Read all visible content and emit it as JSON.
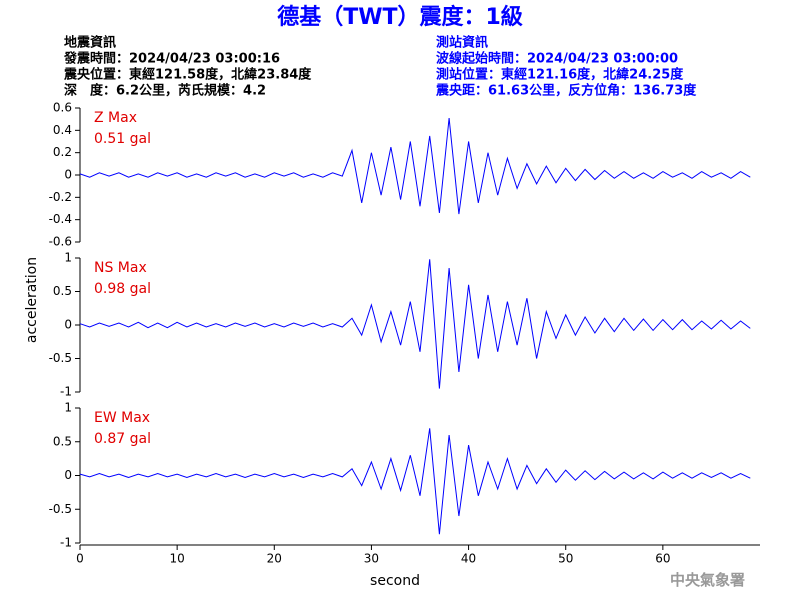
{
  "title": "德基（TWT）震度：1級",
  "event_info": {
    "heading": "地震資訊",
    "lines": [
      "發震時間：2024/04/23 03:00:16",
      "震央位置：東經121.58度，北緯23.84度",
      "深　度：6.2公里，芮氏規模：4.2"
    ]
  },
  "station_info": {
    "heading": "測站資訊",
    "lines": [
      "波線起始時間：2024/04/23 03:00:00",
      "測站位置：東經121.16度，北緯24.25度",
      "震央距：61.63公里，反方位角：136.73度"
    ]
  },
  "footer": "中央氣象署",
  "chart_data": [
    {
      "type": "line",
      "label": "Z Max",
      "value_label": "0.51 gal",
      "xlim": [
        0,
        70
      ],
      "ylim": [
        -0.6,
        0.6
      ],
      "yticks": [
        0.6,
        0.4,
        0.2,
        0,
        -0.2,
        -0.4,
        -0.6
      ],
      "x": [
        0,
        1,
        2,
        3,
        4,
        5,
        6,
        7,
        8,
        9,
        10,
        11,
        12,
        13,
        14,
        15,
        16,
        17,
        18,
        19,
        20,
        21,
        22,
        23,
        24,
        25,
        26,
        27,
        28,
        29,
        30,
        31,
        32,
        33,
        34,
        35,
        36,
        37,
        38,
        39,
        40,
        41,
        42,
        43,
        44,
        45,
        46,
        47,
        48,
        49,
        50,
        51,
        52,
        53,
        54,
        55,
        56,
        57,
        58,
        59,
        60,
        61,
        62,
        63,
        64,
        65,
        66,
        67,
        68,
        69
      ],
      "series": [
        {
          "color": "#0000ff",
          "values": [
            0.01,
            -0.02,
            0.02,
            -0.01,
            0.02,
            -0.02,
            0.01,
            -0.02,
            0.02,
            -0.01,
            0.02,
            -0.02,
            0.01,
            -0.02,
            0.02,
            -0.01,
            0.02,
            -0.02,
            0.01,
            -0.02,
            0.02,
            -0.01,
            0.02,
            -0.02,
            0.01,
            -0.02,
            0.02,
            -0.01,
            0.22,
            -0.25,
            0.2,
            -0.18,
            0.25,
            -0.22,
            0.3,
            -0.28,
            0.35,
            -0.34,
            0.51,
            -0.35,
            0.3,
            -0.25,
            0.2,
            -0.18,
            0.15,
            -0.12,
            0.1,
            -0.08,
            0.08,
            -0.07,
            0.06,
            -0.05,
            0.05,
            -0.04,
            0.04,
            -0.03,
            0.03,
            -0.03,
            0.02,
            -0.03,
            0.03,
            -0.02,
            0.02,
            -0.03,
            0.03,
            -0.02,
            0.02,
            -0.03,
            0.03,
            -0.02
          ]
        }
      ]
    },
    {
      "type": "line",
      "label": "NS Max",
      "value_label": "0.98 gal",
      "ylabel": "acceleration",
      "xlim": [
        0,
        70
      ],
      "ylim": [
        -1,
        1
      ],
      "yticks": [
        1,
        0.5,
        0,
        -0.5,
        -1
      ],
      "x": [
        0,
        1,
        2,
        3,
        4,
        5,
        6,
        7,
        8,
        9,
        10,
        11,
        12,
        13,
        14,
        15,
        16,
        17,
        18,
        19,
        20,
        21,
        22,
        23,
        24,
        25,
        26,
        27,
        28,
        29,
        30,
        31,
        32,
        33,
        34,
        35,
        36,
        37,
        38,
        39,
        40,
        41,
        42,
        43,
        44,
        45,
        46,
        47,
        48,
        49,
        50,
        51,
        52,
        53,
        54,
        55,
        56,
        57,
        58,
        59,
        60,
        61,
        62,
        63,
        64,
        65,
        66,
        67,
        68,
        69
      ],
      "series": [
        {
          "color": "#0000ff",
          "values": [
            0.02,
            -0.03,
            0.03,
            -0.02,
            0.03,
            -0.03,
            0.04,
            -0.04,
            0.03,
            -0.04,
            0.04,
            -0.03,
            0.03,
            -0.03,
            0.02,
            -0.03,
            0.03,
            -0.02,
            0.03,
            -0.03,
            0.02,
            -0.03,
            0.03,
            -0.02,
            0.03,
            -0.03,
            0.02,
            -0.03,
            0.1,
            -0.15,
            0.3,
            -0.25,
            0.2,
            -0.3,
            0.35,
            -0.4,
            0.98,
            -0.95,
            0.85,
            -0.7,
            0.6,
            -0.5,
            0.45,
            -0.4,
            0.35,
            -0.3,
            0.4,
            -0.5,
            0.2,
            -0.2,
            0.15,
            -0.15,
            0.12,
            -0.12,
            0.1,
            -0.1,
            0.1,
            -0.08,
            0.09,
            -0.08,
            0.08,
            -0.07,
            0.08,
            -0.07,
            0.06,
            -0.06,
            0.07,
            -0.06,
            0.06,
            -0.05
          ]
        }
      ]
    },
    {
      "type": "line",
      "label": "EW Max",
      "value_label": "0.87 gal",
      "xlabel": "second",
      "xlim": [
        0,
        70
      ],
      "ylim": [
        -1,
        1
      ],
      "yticks": [
        1,
        0.5,
        0,
        -0.5,
        -1
      ],
      "xticks": [
        0,
        10,
        20,
        30,
        40,
        50,
        60
      ],
      "x": [
        0,
        1,
        2,
        3,
        4,
        5,
        6,
        7,
        8,
        9,
        10,
        11,
        12,
        13,
        14,
        15,
        16,
        17,
        18,
        19,
        20,
        21,
        22,
        23,
        24,
        25,
        26,
        27,
        28,
        29,
        30,
        31,
        32,
        33,
        34,
        35,
        36,
        37,
        38,
        39,
        40,
        41,
        42,
        43,
        44,
        45,
        46,
        47,
        48,
        49,
        50,
        51,
        52,
        53,
        54,
        55,
        56,
        57,
        58,
        59,
        60,
        61,
        62,
        63,
        64,
        65,
        66,
        67,
        68,
        69
      ],
      "series": [
        {
          "color": "#0000ff",
          "values": [
            0.02,
            -0.02,
            0.03,
            -0.02,
            0.02,
            -0.03,
            0.02,
            -0.02,
            0.03,
            -0.02,
            0.02,
            -0.03,
            0.02,
            -0.02,
            0.03,
            -0.02,
            0.02,
            -0.03,
            0.02,
            -0.02,
            0.03,
            -0.02,
            0.02,
            -0.03,
            0.02,
            -0.02,
            0.03,
            -0.02,
            0.1,
            -0.15,
            0.2,
            -0.2,
            0.25,
            -0.22,
            0.3,
            -0.3,
            0.7,
            -0.87,
            0.6,
            -0.6,
            0.45,
            -0.3,
            0.2,
            -0.2,
            0.25,
            -0.2,
            0.15,
            -0.12,
            0.1,
            -0.1,
            0.08,
            -0.07,
            0.07,
            -0.06,
            0.06,
            -0.05,
            0.05,
            -0.05,
            0.04,
            -0.05,
            0.05,
            -0.04,
            0.04,
            -0.04,
            0.04,
            -0.03,
            0.04,
            -0.04,
            0.03,
            -0.04
          ]
        }
      ]
    }
  ]
}
